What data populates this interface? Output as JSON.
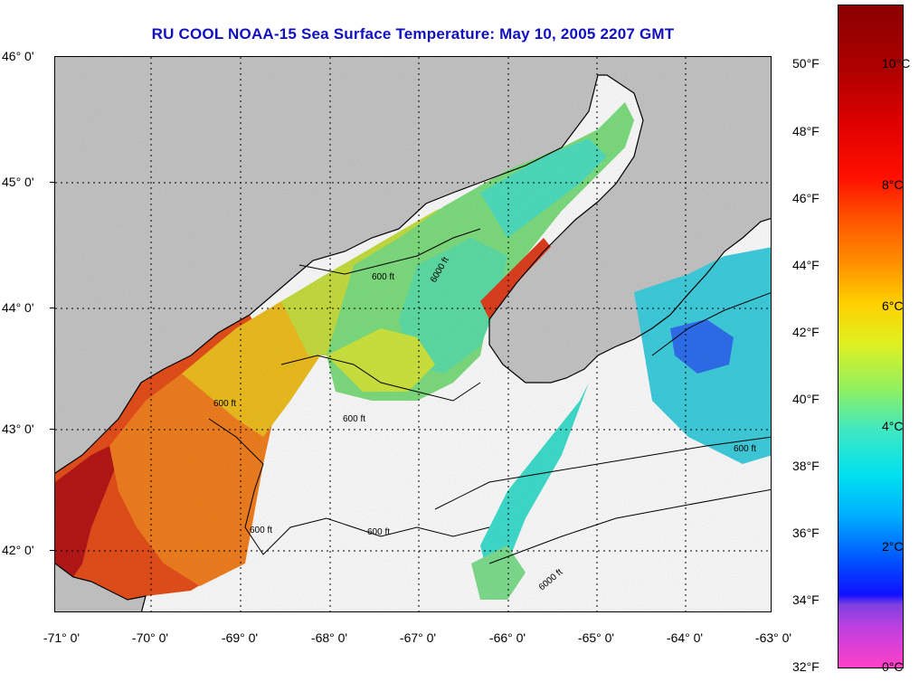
{
  "title": "RU COOL  NOAA-15  Sea Surface Temperature:  May 10, 2005 2207 GMT",
  "latitude_labels": [
    "46° 0'",
    "45° 0'",
    "44° 0'",
    "43° 0'",
    "42° 0'"
  ],
  "longitude_labels": [
    "-71° 0'",
    "-70° 0'",
    "-69° 0'",
    "-68° 0'",
    "-67° 0'",
    "-66° 0'",
    "-65° 0'",
    "-64° 0'",
    "-63° 0'"
  ],
  "isobath_labels": {
    "shallow": "600 ft",
    "deep": "6000 ft",
    "deep_variant": "6000 ft"
  },
  "colorbar": {
    "fahrenheit_labels": [
      "50°F",
      "48°F",
      "46°F",
      "44°F",
      "42°F",
      "40°F",
      "38°F",
      "36°F",
      "34°F",
      "32°F"
    ],
    "celsius_labels": [
      "10°C",
      "8°C",
      "6°C",
      "4°C",
      "2°C",
      "0°C"
    ]
  },
  "colors": {
    "land": "#c8c8c8",
    "cloud_no_data": "#ffffff",
    "title": "#1010c0",
    "grid": "#000000"
  }
}
